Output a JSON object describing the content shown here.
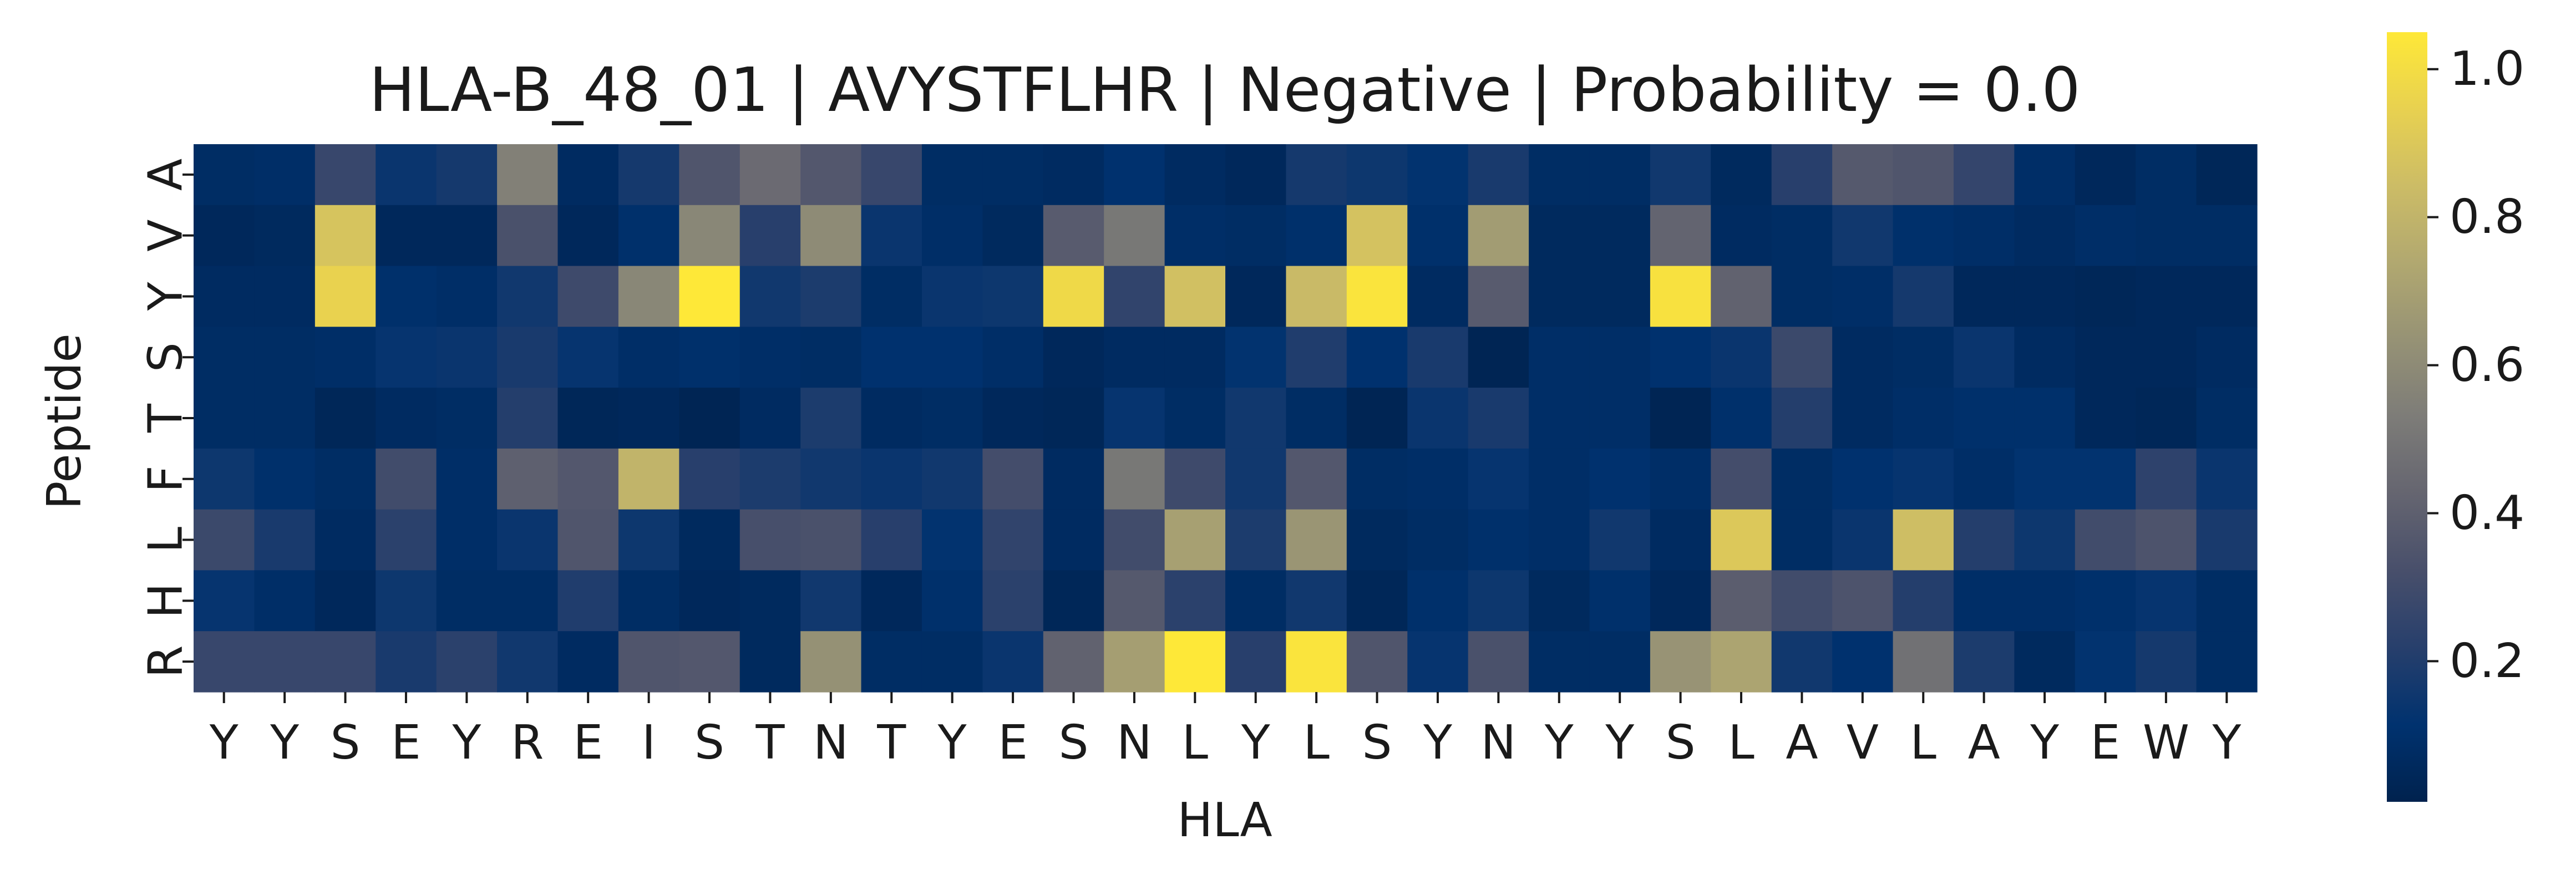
{
  "chart_data": {
    "type": "heatmap",
    "title": "HLA-B_48_01 | AVYSTFLHR | Negative | Probability = 0.0",
    "xlabel": "HLA",
    "ylabel": "Peptide",
    "x_tick_labels": [
      "Y",
      "Y",
      "S",
      "E",
      "Y",
      "R",
      "E",
      "I",
      "S",
      "T",
      "N",
      "T",
      "Y",
      "E",
      "S",
      "N",
      "L",
      "Y",
      "L",
      "S",
      "Y",
      "N",
      "Y",
      "Y",
      "S",
      "L",
      "A",
      "V",
      "L",
      "A",
      "Y",
      "E",
      "W",
      "Y"
    ],
    "y_tick_labels": [
      "A",
      "V",
      "Y",
      "S",
      "T",
      "F",
      "L",
      "H",
      "R"
    ],
    "colormap": "cividis",
    "colorbar": {
      "range": [
        0.01,
        1.05
      ],
      "ticks": [
        0.2,
        0.4,
        0.6,
        0.8,
        1.0
      ],
      "tick_labels": [
        "0.2",
        "0.4",
        "0.6",
        "0.8",
        "1.0"
      ]
    },
    "values": [
      [
        0.08,
        0.09,
        0.27,
        0.14,
        0.17,
        0.55,
        0.07,
        0.17,
        0.35,
        0.45,
        0.36,
        0.27,
        0.08,
        0.08,
        0.07,
        0.11,
        0.07,
        0.05,
        0.17,
        0.15,
        0.12,
        0.18,
        0.08,
        0.08,
        0.16,
        0.06,
        0.22,
        0.37,
        0.35,
        0.26,
        0.09,
        0.05,
        0.08,
        0.04
      ],
      [
        0.05,
        0.06,
        0.88,
        0.05,
        0.05,
        0.33,
        0.05,
        0.1,
        0.58,
        0.22,
        0.6,
        0.14,
        0.09,
        0.06,
        0.38,
        0.51,
        0.09,
        0.08,
        0.1,
        0.87,
        0.1,
        0.68,
        0.06,
        0.06,
        0.42,
        0.07,
        0.08,
        0.16,
        0.1,
        0.09,
        0.07,
        0.09,
        0.08,
        0.08
      ],
      [
        0.07,
        0.07,
        0.95,
        0.1,
        0.09,
        0.16,
        0.29,
        0.58,
        1.05,
        0.16,
        0.19,
        0.08,
        0.14,
        0.15,
        0.98,
        0.25,
        0.86,
        0.05,
        0.83,
        1.03,
        0.07,
        0.38,
        0.06,
        0.06,
        1.02,
        0.41,
        0.08,
        0.09,
        0.17,
        0.05,
        0.05,
        0.04,
        0.05,
        0.05
      ],
      [
        0.08,
        0.08,
        0.09,
        0.13,
        0.14,
        0.18,
        0.13,
        0.09,
        0.1,
        0.09,
        0.08,
        0.11,
        0.11,
        0.09,
        0.05,
        0.07,
        0.07,
        0.12,
        0.2,
        0.11,
        0.18,
        0.03,
        0.09,
        0.09,
        0.11,
        0.14,
        0.28,
        0.07,
        0.08,
        0.14,
        0.07,
        0.05,
        0.05,
        0.07
      ],
      [
        0.08,
        0.08,
        0.04,
        0.07,
        0.08,
        0.21,
        0.04,
        0.05,
        0.03,
        0.07,
        0.19,
        0.07,
        0.08,
        0.05,
        0.04,
        0.13,
        0.08,
        0.16,
        0.08,
        0.03,
        0.14,
        0.18,
        0.09,
        0.09,
        0.03,
        0.1,
        0.21,
        0.07,
        0.09,
        0.1,
        0.1,
        0.05,
        0.04,
        0.08
      ],
      [
        0.15,
        0.1,
        0.08,
        0.3,
        0.09,
        0.4,
        0.36,
        0.8,
        0.22,
        0.19,
        0.16,
        0.14,
        0.16,
        0.31,
        0.07,
        0.51,
        0.29,
        0.16,
        0.36,
        0.08,
        0.09,
        0.13,
        0.09,
        0.11,
        0.09,
        0.31,
        0.08,
        0.11,
        0.13,
        0.09,
        0.12,
        0.12,
        0.24,
        0.14
      ],
      [
        0.28,
        0.18,
        0.07,
        0.23,
        0.09,
        0.14,
        0.35,
        0.15,
        0.06,
        0.32,
        0.33,
        0.22,
        0.12,
        0.25,
        0.07,
        0.3,
        0.7,
        0.19,
        0.65,
        0.06,
        0.08,
        0.1,
        0.09,
        0.16,
        0.07,
        0.9,
        0.08,
        0.14,
        0.85,
        0.21,
        0.15,
        0.3,
        0.34,
        0.18
      ],
      [
        0.13,
        0.09,
        0.05,
        0.15,
        0.08,
        0.08,
        0.2,
        0.08,
        0.05,
        0.06,
        0.16,
        0.05,
        0.1,
        0.23,
        0.04,
        0.37,
        0.23,
        0.08,
        0.16,
        0.04,
        0.1,
        0.15,
        0.06,
        0.1,
        0.05,
        0.39,
        0.3,
        0.34,
        0.21,
        0.09,
        0.09,
        0.1,
        0.13,
        0.08
      ],
      [
        0.27,
        0.27,
        0.27,
        0.18,
        0.23,
        0.16,
        0.07,
        0.35,
        0.36,
        0.06,
        0.63,
        0.08,
        0.08,
        0.14,
        0.41,
        0.69,
        1.05,
        0.22,
        1.03,
        0.35,
        0.13,
        0.33,
        0.08,
        0.08,
        0.64,
        0.72,
        0.16,
        0.11,
        0.48,
        0.19,
        0.06,
        0.12,
        0.17,
        0.08
      ]
    ]
  }
}
